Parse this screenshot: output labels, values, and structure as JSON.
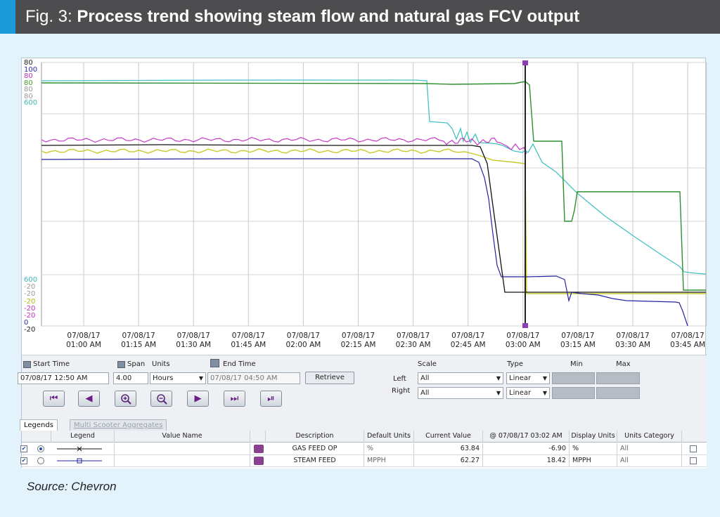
{
  "figure": {
    "number": "Fig. 3:",
    "title": "Process trend showing steam flow and natural gas FCV output",
    "source": "Source: Chevron",
    "colors": {
      "header_bg": "#4d4d4f",
      "header_accent": "#1a9ad6",
      "page_bg": "#e2f3fb"
    }
  },
  "trend": {
    "left_axis_top_labels": [
      {
        "text": "80",
        "color": "#222222"
      },
      {
        "text": "100",
        "color": "#2b2ba8"
      },
      {
        "text": "80",
        "color": "#c02fc0"
      },
      {
        "text": "80",
        "color": "#4a9d2e"
      },
      {
        "text": "80",
        "color": "#9a9a9a"
      },
      {
        "text": "80",
        "color": "#9a9a9a"
      },
      {
        "text": "600",
        "color": "#3bb8b8"
      }
    ],
    "left_axis_bottom_labels": [
      {
        "text": "600",
        "color": "#3bb8b8"
      },
      {
        "text": "-20",
        "color": "#9a9a9a"
      },
      {
        "text": "-20",
        "color": "#9a9a9a"
      },
      {
        "text": "-20",
        "color": "#b5b51f"
      },
      {
        "text": "-20",
        "color": "#c02fc0"
      },
      {
        "text": "-20",
        "color": "#c02fc0"
      },
      {
        "text": "0",
        "color": "#2b2ba8"
      },
      {
        "text": "-20",
        "color": "#222222"
      }
    ],
    "x_ticks": [
      [
        "07/08/17",
        "01:00 AM"
      ],
      [
        "07/08/17",
        "01:15 AM"
      ],
      [
        "07/08/17",
        "01:30 AM"
      ],
      [
        "07/08/17",
        "01:45 AM"
      ],
      [
        "07/08/17",
        "02:00 AM"
      ],
      [
        "07/08/17",
        "02:15 AM"
      ],
      [
        "07/08/17",
        "02:30 AM"
      ],
      [
        "07/08/17",
        "02:45 AM"
      ],
      [
        "07/08/17",
        "03:00 AM"
      ],
      [
        "07/08/17",
        "03:15 AM"
      ],
      [
        "07/08/17",
        "03:30 AM"
      ],
      [
        "07/08/17",
        "03:45 AM"
      ]
    ],
    "series_colors": {
      "cyan": "#45c2c2",
      "green": "#2f8f2f",
      "magenta": "#c43ac4",
      "yellow": "#c8c829",
      "black": "#111111",
      "blue": "#2323a0",
      "cursor": "#222222",
      "cursor_marker": "#8a3fb4"
    }
  },
  "controls": {
    "start_time_label": "Start Time",
    "start_time_value": "07/08/17 12:50 AM",
    "span_label": "Span",
    "span_value": "4.00",
    "units_label": "Units",
    "units_value": "Hours",
    "end_time_label": "End Time",
    "end_time_value": "07/08/17 04:50 AM",
    "retrieve_label": "Retrieve",
    "scale_label": "Scale",
    "type_label": "Type",
    "min_label": "Min",
    "max_label": "Max",
    "left_label": "Left",
    "right_label": "Right",
    "left_scale": "All",
    "right_scale": "All",
    "left_type": "Linear",
    "right_type": "Linear",
    "nav_buttons": [
      "⏮",
      "◀",
      "zoom-in",
      "zoom-out",
      "▶",
      "⏭",
      "⏯"
    ]
  },
  "tabs": {
    "legends": "Legends",
    "multi_scooter": "Multi Scooter Aggregates"
  },
  "table": {
    "headers": [
      "Legend",
      "Value Name",
      "Description",
      "Default Units",
      "Current Value",
      "@ 07/08/17 03:02 AM",
      "Display Units",
      "Units Category"
    ],
    "rows": [
      {
        "description": "GAS FEED OP",
        "default_units": "%",
        "current_value": "63.84",
        "at_value": "-6.90",
        "display_units": "%",
        "units_category": "All"
      },
      {
        "description": "STEAM FEED",
        "default_units": "MPPH",
        "current_value": "62.27",
        "at_value": "18.42",
        "display_units": "MPPH",
        "units_category": "All"
      }
    ]
  }
}
